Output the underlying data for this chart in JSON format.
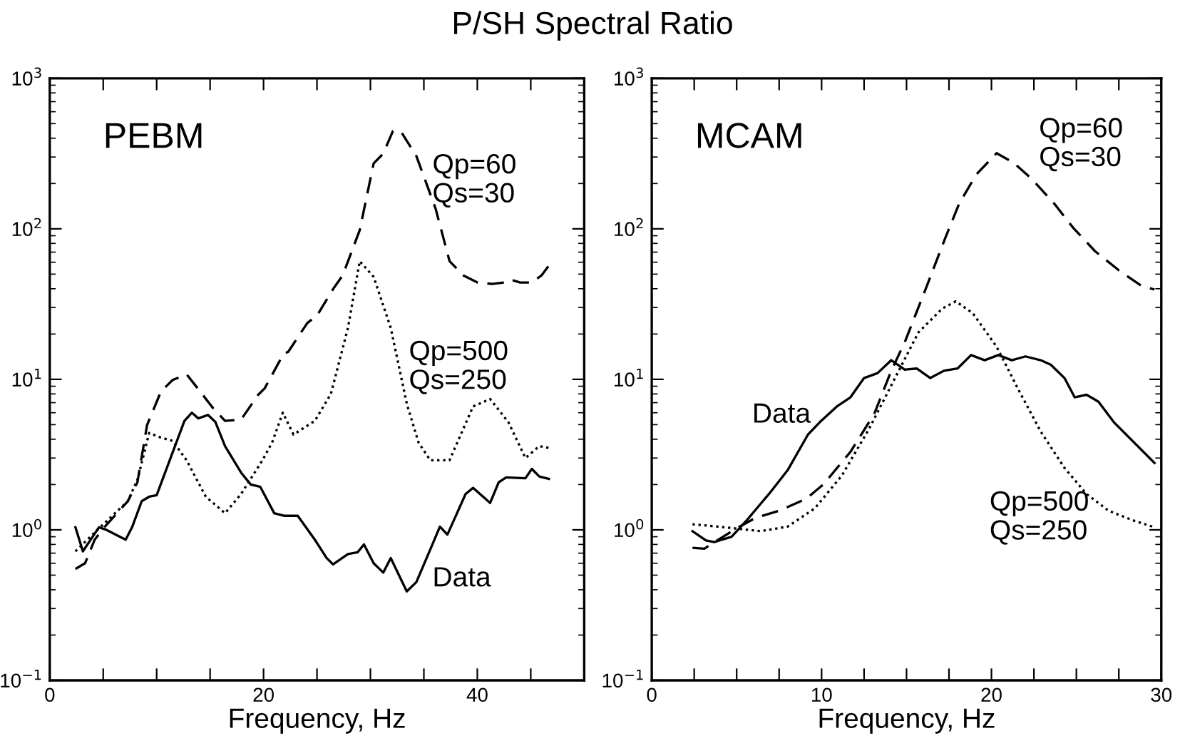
{
  "chart_data": [
    {
      "type": "line",
      "title": "P/SH Spectral Ratio",
      "xlabel": "Frequency, Hz",
      "log": "y",
      "grid": false,
      "legend": false,
      "xlim": [
        0,
        50
      ],
      "xticks": [
        0,
        {
          "value": 5,
          "label": null
        },
        {
          "value": 10,
          "label": null
        },
        {
          "value": 15,
          "label": null
        },
        20,
        {
          "value": 25,
          "label": null
        },
        {
          "value": 30,
          "label": null
        },
        {
          "value": 35,
          "label": null
        },
        40,
        {
          "value": 45,
          "label": null
        }
      ],
      "ylim": [
        0.1,
        1000
      ],
      "yticks": [
        {
          "value": 0.1,
          "label": "10$^{−1}$"
        },
        {
          "value": 1,
          "label": "10$^{0}$"
        },
        {
          "value": 10,
          "label": "10$^{1}$"
        },
        {
          "value": 100,
          "label": "10$^{2}$"
        },
        {
          "value": 1000,
          "label": "10$^{3}$"
        }
      ],
      "annotations": [
        "PEBM",
        "Qp=60\nQs=30",
        "Qp=500\nQs=250",
        "Data"
      ],
      "series": [
        {
          "color": "#000000",
          "line_style": "solid",
          "x": [
            2.4,
            3.1,
            4.6,
            5.3,
            7.1,
            7.7,
            8.6,
            9.3,
            10.0,
            12.6,
            13.3,
            13.9,
            14.8,
            15.5,
            16.4,
            17.9,
            18.8,
            19.7,
            21.0,
            21.9,
            23.2,
            24.8,
            25.9,
            26.5,
            27.9,
            28.8,
            29.4,
            30.3,
            31.2,
            31.9,
            33.4,
            34.3,
            35.8,
            36.5,
            37.2,
            38.1,
            38.9,
            39.6,
            41.2,
            42.0,
            42.7,
            44.5,
            45.1,
            45.8,
            46.7
          ],
          "values": [
            1.04,
            0.72,
            1.04,
            1.0,
            0.86,
            1.04,
            1.55,
            1.66,
            1.7,
            5.3,
            6.0,
            5.5,
            5.8,
            5.2,
            3.6,
            2.4,
            2.0,
            1.93,
            1.29,
            1.24,
            1.24,
            0.86,
            0.65,
            0.59,
            0.69,
            0.71,
            0.8,
            0.6,
            0.52,
            0.65,
            0.39,
            0.45,
            0.8,
            1.05,
            0.93,
            1.29,
            1.73,
            1.9,
            1.51,
            2.07,
            2.23,
            2.2,
            2.54,
            2.26,
            2.18
          ]
        },
        {
          "color": "#000000",
          "line_style": "dashed",
          "x": [
            2.4,
            3.3,
            4.2,
            5.1,
            7.3,
            8.2,
            9.1,
            10.4,
            11.5,
            12.8,
            13.9,
            15.3,
            16.4,
            17.9,
            19.5,
            20.1,
            21.9,
            22.3,
            24.1,
            25.0,
            26.5,
            27.4,
            29.0,
            30.3,
            31.2,
            32.1,
            32.9,
            34.3,
            36.1,
            37.4,
            38.7,
            40.0,
            41.4,
            42.5,
            43.1,
            44.0,
            45.1,
            46.0,
            46.7
          ],
          "values": [
            0.55,
            0.6,
            0.86,
            1.04,
            1.55,
            2.07,
            4.96,
            8.3,
            9.9,
            10.8,
            8.6,
            6.4,
            5.3,
            5.4,
            7.9,
            8.7,
            14.9,
            15.2,
            23.7,
            26.5,
            39.7,
            49,
            98,
            272,
            316,
            446,
            438,
            304,
            136,
            61,
            49,
            44,
            43,
            44,
            46,
            44,
            44,
            49,
            57
          ]
        },
        {
          "color": "#000000",
          "line_style": "dotted",
          "x": [
            2.4,
            4.2,
            7.3,
            8.2,
            9.3,
            10.4,
            11.5,
            12.8,
            14.6,
            16.4,
            17.9,
            19.9,
            20.8,
            21.8,
            22.8,
            24.8,
            26.3,
            27.9,
            29.0,
            30.3,
            31.9,
            33.4,
            34.5,
            35.6,
            37.4,
            39.6,
            41.2,
            42.9,
            44.5,
            45.8,
            46.7
          ],
          "values": [
            0.72,
            0.96,
            1.55,
            2.15,
            4.4,
            4.1,
            3.9,
            2.9,
            1.66,
            1.29,
            1.73,
            2.9,
            3.8,
            6.0,
            4.3,
            5.3,
            8.0,
            22,
            61,
            48,
            22,
            6.9,
            3.8,
            2.9,
            2.9,
            6.6,
            7.4,
            5.2,
            3.0,
            3.6,
            3.5
          ]
        }
      ]
    },
    {
      "type": "line",
      "xlabel": "Frequency, Hz",
      "log": "y",
      "grid": false,
      "legend": false,
      "xlim": [
        0,
        30
      ],
      "xticks": [
        0,
        {
          "value": 2.5,
          "label": null
        },
        {
          "value": 5,
          "label": null
        },
        {
          "value": 7.5,
          "label": null
        },
        10,
        {
          "value": 12.5,
          "label": null
        },
        {
          "value": 15,
          "label": null
        },
        {
          "value": 17.5,
          "label": null
        },
        20,
        {
          "value": 22.5,
          "label": null
        },
        {
          "value": 25,
          "label": null
        },
        {
          "value": 27.5,
          "label": null
        },
        30
      ],
      "ylim": [
        0.1,
        1000
      ],
      "yticks": [
        {
          "value": 0.1,
          "label": "10$^{−1}$"
        },
        {
          "value": 1,
          "label": "10$^{0}$"
        },
        {
          "value": 10,
          "label": "10$^{1}$"
        },
        {
          "value": 100,
          "label": "10$^{2}$"
        },
        {
          "value": 1000,
          "label": "10$^{3}$"
        }
      ],
      "annotations": [
        "MCAM",
        "Qp=60\nQs=30",
        "Data",
        "Qp=500\nQs=250"
      ],
      "series": [
        {
          "color": "#000000",
          "line_style": "solid",
          "x": [
            2.4,
            3.2,
            3.7,
            4.7,
            5.6,
            6.3,
            6.9,
            8.0,
            9.2,
            9.9,
            10.9,
            11.7,
            12.5,
            13.3,
            14.1,
            14.9,
            15.6,
            16.4,
            17.2,
            18.0,
            18.8,
            19.6,
            20.4,
            21.2,
            22.0,
            22.9,
            23.5,
            24.3,
            24.9,
            25.6,
            26.3,
            27.2,
            28.3,
            29.6
          ],
          "values": [
            0.98,
            0.85,
            0.83,
            0.9,
            1.16,
            1.44,
            1.73,
            2.49,
            4.3,
            5.2,
            6.6,
            7.6,
            10.2,
            11.0,
            13.4,
            11.6,
            11.8,
            10.2,
            11.4,
            11.8,
            14.5,
            13.4,
            14.5,
            13.4,
            14.2,
            13.4,
            12.5,
            10.2,
            7.6,
            7.9,
            7.1,
            5.2,
            3.9,
            2.78
          ]
        },
        {
          "color": "#000000",
          "line_style": "dashed",
          "x": [
            2.4,
            3.1,
            3.7,
            5.1,
            6.1,
            7.5,
            9.1,
            10.1,
            11.7,
            13.1,
            14.1,
            14.9,
            16.0,
            17.3,
            18.1,
            19.1,
            20.3,
            21.3,
            22.4,
            23.7,
            24.8,
            26.1,
            27.5,
            28.8,
            29.6
          ],
          "values": [
            0.76,
            0.75,
            0.83,
            1.04,
            1.2,
            1.34,
            1.61,
            2.0,
            3.3,
            5.9,
            11.4,
            17.7,
            36.6,
            88,
            147,
            229,
            318,
            275,
            213,
            147,
            102,
            71,
            53,
            42,
            39.5
          ]
        },
        {
          "color": "#000000",
          "line_style": "dotted",
          "x": [
            2.4,
            4.3,
            6.4,
            8.0,
            9.6,
            11.2,
            12.8,
            14.4,
            15.7,
            17.1,
            17.9,
            18.9,
            20.3,
            21.6,
            22.9,
            24.3,
            25.6,
            26.9,
            28.3,
            29.6
          ],
          "values": [
            1.09,
            1.04,
            0.98,
            1.05,
            1.39,
            2.3,
            4.7,
            10.6,
            20.5,
            29.5,
            33,
            27.5,
            16.5,
            8.5,
            4.5,
            2.58,
            1.73,
            1.34,
            1.16,
            1.04
          ]
        }
      ]
    }
  ]
}
